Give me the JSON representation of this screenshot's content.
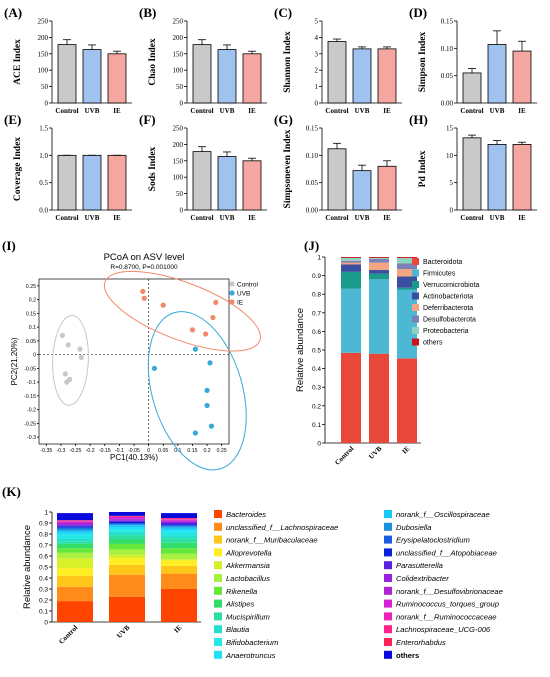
{
  "bar_panels": [
    {
      "letter": "(A)",
      "ylabel": "ACE Index",
      "ticks": [
        "0",
        "50",
        "100",
        "150",
        "200",
        "250"
      ],
      "ymax": 250,
      "categories": [
        "Control",
        "UVB",
        "IE"
      ],
      "values": [
        178,
        163,
        150
      ],
      "errors": [
        15,
        14,
        8
      ]
    },
    {
      "letter": "(B)",
      "ylabel": "Chao Index",
      "ticks": [
        "0",
        "50",
        "100",
        "150",
        "200",
        "250"
      ],
      "ymax": 250,
      "categories": [
        "Control",
        "UVB",
        "IE"
      ],
      "values": [
        178,
        163,
        150
      ],
      "errors": [
        15,
        14,
        8
      ]
    },
    {
      "letter": "(C)",
      "ylabel": "Shannon Index",
      "ticks": [
        "0",
        "1",
        "2",
        "3",
        "4",
        "5"
      ],
      "ymax": 5,
      "categories": [
        "Control",
        "UVB",
        "IE"
      ],
      "values": [
        3.75,
        3.3,
        3.3
      ],
      "errors": [
        0.15,
        0.12,
        0.12
      ]
    },
    {
      "letter": "(D)",
      "ylabel": "Simpson Index",
      "ticks": [
        "0.00",
        "0.05",
        "0.10",
        "0.15"
      ],
      "ymax": 0.15,
      "categories": [
        "Control",
        "UVB",
        "IE"
      ],
      "values": [
        0.055,
        0.107,
        0.095
      ],
      "errors": [
        0.008,
        0.025,
        0.018
      ]
    },
    {
      "letter": "(E)",
      "ylabel": "Coverage Index",
      "ticks": [
        "0.0",
        "0.5",
        "1.0",
        "1.5"
      ],
      "ymax": 1.5,
      "categories": [
        "Control",
        "UVB",
        "IE"
      ],
      "values": [
        1.0,
        1.0,
        1.0
      ],
      "errors": [
        0.002,
        0.002,
        0.002
      ]
    },
    {
      "letter": "(F)",
      "ylabel": "Sods Index",
      "ticks": [
        "0",
        "50",
        "100",
        "150",
        "200",
        "250"
      ],
      "ymax": 250,
      "categories": [
        "Control",
        "UVB",
        "IE"
      ],
      "values": [
        178,
        163,
        150
      ],
      "errors": [
        15,
        14,
        8
      ]
    },
    {
      "letter": "(G)",
      "ylabel": "Simpsoneven Index",
      "ticks": [
        "0.00",
        "0.05",
        "0.10",
        "0.15"
      ],
      "ymax": 0.15,
      "categories": [
        "Control",
        "UVB",
        "IE"
      ],
      "values": [
        0.112,
        0.072,
        0.08
      ],
      "errors": [
        0.01,
        0.01,
        0.01
      ]
    },
    {
      "letter": "(H)",
      "ylabel": "Pd Index",
      "ticks": [
        "0",
        "5",
        "10",
        "15"
      ],
      "ymax": 15,
      "categories": [
        "Control",
        "UVB",
        "IE"
      ],
      "values": [
        13.2,
        12.0,
        12.0
      ],
      "errors": [
        0.5,
        0.7,
        0.4
      ]
    }
  ],
  "bar_colors": [
    "#c9c9c9",
    "#9fc2ee",
    "#f6a6a1"
  ],
  "pcoa": {
    "letter": "(I)",
    "title": "PCoA on ASV level",
    "subtitle": "R=0.8700, P=0.001000",
    "xlabel": "PC1(40.13%)",
    "ylabel": "PC2(21.20%)",
    "xticks": [
      "-0.35",
      "-0.3",
      "-0.25",
      "-0.2",
      "-0.15",
      "-0.1",
      "-0.05",
      "0",
      "0.05",
      "0.1",
      "0.15",
      "0.2",
      "0.25"
    ],
    "yticks": [
      "0.25",
      "0.2",
      "0.15",
      "0.1",
      "0.05",
      "0",
      "-0.05",
      "-0.1",
      "-0.15",
      "-0.2",
      "-0.25",
      "-0.3"
    ],
    "legend": [
      {
        "label": "Control",
        "color": "#c8c8c8"
      },
      {
        "label": "UVB",
        "color": "#3aa8d8"
      },
      {
        "label": "IE",
        "color": "#f08a6a"
      }
    ],
    "groups": [
      {
        "color": "#c8c8c8",
        "points": [
          [
            -0.295,
            0.07
          ],
          [
            -0.285,
            -0.07
          ],
          [
            -0.28,
            -0.1
          ],
          [
            -0.27,
            -0.09
          ],
          [
            -0.235,
            0.02
          ],
          [
            -0.23,
            -0.01
          ],
          [
            -0.275,
            0.035
          ]
        ]
      },
      {
        "color": "#3aa8d8",
        "points": [
          [
            0.02,
            -0.05
          ],
          [
            0.16,
            -0.285
          ],
          [
            0.16,
            0.02
          ],
          [
            0.2,
            -0.13
          ],
          [
            0.21,
            -0.03
          ],
          [
            0.215,
            -0.26
          ],
          [
            0.2,
            -0.185
          ]
        ]
      },
      {
        "color": "#f08a6a",
        "points": [
          [
            -0.02,
            0.23
          ],
          [
            -0.015,
            0.205
          ],
          [
            0.05,
            0.18
          ],
          [
            0.15,
            0.09
          ],
          [
            0.195,
            0.075
          ],
          [
            0.23,
            0.19
          ],
          [
            0.22,
            0.135
          ]
        ]
      }
    ]
  },
  "phylum": {
    "letter": "(J)",
    "ylabel": "Relative abundance",
    "ticks": [
      "0",
      "0.1",
      "0.2",
      "0.3",
      "0.4",
      "0.5",
      "0.6",
      "0.7",
      "0.8",
      "0.9",
      "1"
    ],
    "categories": [
      "Control",
      "UVB",
      "IE"
    ],
    "taxa": [
      {
        "name": "Bacteroidota",
        "color": "#e8473a",
        "values": [
          0.485,
          0.48,
          0.455
        ]
      },
      {
        "name": "Firmicutes",
        "color": "#4cb8d4",
        "values": [
          0.345,
          0.4,
          0.37
        ]
      },
      {
        "name": "Verrucomicrobiota",
        "color": "#1a9a8a",
        "values": [
          0.09,
          0.03,
          0.01
        ]
      },
      {
        "name": "Actinobacteriota",
        "color": "#3a4fa0",
        "values": [
          0.04,
          0.02,
          0.06
        ]
      },
      {
        "name": "Deferribacterota",
        "color": "#f4a582",
        "values": [
          0.01,
          0.04,
          0.04
        ]
      },
      {
        "name": "Desulfobacterota",
        "color": "#7b82b8",
        "values": [
          0.01,
          0.02,
          0.03
        ]
      },
      {
        "name": "Proteobacteria",
        "color": "#8fd3c0",
        "values": [
          0.015,
          0.005,
          0.03
        ]
      },
      {
        "name": "others",
        "color": "#c9141c",
        "values": [
          0.005,
          0.005,
          0.005
        ]
      }
    ]
  },
  "genus": {
    "letter": "(K)",
    "ylabel": "Relative abundance",
    "ticks": [
      "0",
      "0.1",
      "0.2",
      "0.3",
      "0.4",
      "0.5",
      "0.6",
      "0.7",
      "0.8",
      "0.9",
      "1"
    ],
    "categories": [
      "Control",
      "UVB",
      "IE"
    ],
    "taxa": [
      {
        "name": "Bacteroides",
        "color": "#ff4400",
        "values": [
          0.19,
          0.23,
          0.3
        ]
      },
      {
        "name": "unclassified_f__Lachnospiraceae",
        "color": "#ff8c1a",
        "values": [
          0.13,
          0.2,
          0.14
        ]
      },
      {
        "name": "norank_f__Muribaculaceae",
        "color": "#ffc61a",
        "values": [
          0.1,
          0.09,
          0.07
        ]
      },
      {
        "name": "Alloprevotella",
        "color": "#ffee22",
        "values": [
          0.07,
          0.06,
          0.05
        ]
      },
      {
        "name": "Akkermansia",
        "color": "#d6f02a",
        "values": [
          0.09,
          0.03,
          0.01
        ]
      },
      {
        "name": "Lactobacillus",
        "color": "#aaf040",
        "values": [
          0.05,
          0.05,
          0.05
        ]
      },
      {
        "name": "Rikenella",
        "color": "#66e83a",
        "values": [
          0.04,
          0.05,
          0.05
        ]
      },
      {
        "name": "Alistipes",
        "color": "#33dd66",
        "values": [
          0.04,
          0.04,
          0.05
        ]
      },
      {
        "name": "Mucispirillum",
        "color": "#2ee0a0",
        "values": [
          0.02,
          0.04,
          0.04
        ]
      },
      {
        "name": "Blautia",
        "color": "#22e0cc",
        "values": [
          0.03,
          0.03,
          0.03
        ]
      },
      {
        "name": "Bifidobacterium",
        "color": "#22e8e8",
        "values": [
          0.03,
          0.02,
          0.03
        ]
      },
      {
        "name": "Anaerotruncus",
        "color": "#20e0f5",
        "values": [
          0.02,
          0.02,
          0.02
        ]
      },
      {
        "name": "norank_f__Oscillospiraceae",
        "color": "#1ac8f5",
        "values": [
          0.02,
          0.02,
          0.02
        ]
      },
      {
        "name": "Dubosiella",
        "color": "#1a90e0",
        "values": [
          0.02,
          0.01,
          0.01
        ]
      },
      {
        "name": "Erysipelatoclostridium",
        "color": "#1a5ce0",
        "values": [
          0.01,
          0.01,
          0.01
        ]
      },
      {
        "name": "unclassified_f__Atopobiaceae",
        "color": "#0a22dd",
        "values": [
          0.01,
          0.01,
          0.01
        ]
      },
      {
        "name": "Parasutterella",
        "color": "#5a22e0",
        "values": [
          0.01,
          0.01,
          0.01
        ]
      },
      {
        "name": "Colidextribacter",
        "color": "#9922dd",
        "values": [
          0.01,
          0.01,
          0.01
        ]
      },
      {
        "name": "norank_f__Desulfovibrionaceae",
        "color": "#b022d0",
        "values": [
          0.01,
          0.01,
          0.01
        ]
      },
      {
        "name": "Ruminococcus_torques_group",
        "color": "#d622d0",
        "values": [
          0.01,
          0.01,
          0.01
        ]
      },
      {
        "name": "norank_f__Ruminococcaceae",
        "color": "#ee22b8",
        "values": [
          0.005,
          0.005,
          0.005
        ]
      },
      {
        "name": "Lachnospiraceae_UCG-006",
        "color": "#ff2288",
        "values": [
          0.005,
          0.005,
          0.005
        ]
      },
      {
        "name": "Enterorhabdus",
        "color": "#ff2255",
        "values": [
          0.005,
          0.005,
          0.005
        ]
      },
      {
        "name": "others",
        "color": "#0a0add",
        "values": [
          0.065,
          0.035,
          0.045
        ]
      }
    ]
  }
}
